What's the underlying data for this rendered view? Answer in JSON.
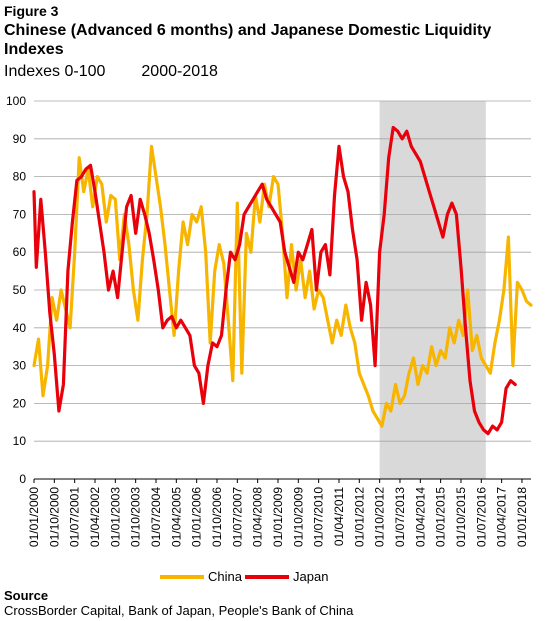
{
  "figure_label": "Figure 3",
  "title": "Chinese (Advanced 6 months) and Japanese Domestic Liquidity Indexes",
  "subtitle_left": "Indexes 0-100",
  "subtitle_right": "2000-2018",
  "source_heading": "Source",
  "source_text": "CrossBorder Capital, Bank of Japan, People's Bank of China",
  "colors": {
    "china": "#f7b500",
    "japan": "#e8000b",
    "shade": "#d9d9d9",
    "grid": "#a6a6a6"
  },
  "chart_data": {
    "type": "line",
    "title": "Chinese (Advanced 6 months) and Japanese Domestic Liquidity Indexes",
    "xlabel": "",
    "ylabel": "",
    "ylim": [
      0,
      100
    ],
    "yticks": [
      0,
      10,
      20,
      30,
      40,
      50,
      60,
      70,
      80,
      90,
      100
    ],
    "x_ticks": [
      "01/01/2000",
      "01/10/2000",
      "01/07/2001",
      "01/04/2002",
      "01/01/2003",
      "01/10/2003",
      "01/07/2004",
      "01/04/2005",
      "01/01/2006",
      "01/10/2006",
      "01/07/2007",
      "01/04/2008",
      "01/01/2009",
      "01/10/2009",
      "01/07/2010",
      "01/04/2011",
      "01/01/2012",
      "01/10/2012",
      "01/07/2013",
      "01/04/2014",
      "01/01/2015",
      "01/10/2015",
      "01/07/2016",
      "01/04/2017",
      "01/01/2018"
    ],
    "shaded_region": {
      "from": "2012-10",
      "to": "2016-09"
    },
    "grid": "horizontal",
    "legend_position": "bottom",
    "series": [
      {
        "name": "China",
        "color": "#f7b500",
        "points": [
          [
            "2000-01",
            30
          ],
          [
            "2000-03",
            37
          ],
          [
            "2000-05",
            22
          ],
          [
            "2000-07",
            30
          ],
          [
            "2000-09",
            48
          ],
          [
            "2000-11",
            42
          ],
          [
            "2001-01",
            50
          ],
          [
            "2001-03",
            45
          ],
          [
            "2001-05",
            40
          ],
          [
            "2001-07",
            60
          ],
          [
            "2001-09",
            85
          ],
          [
            "2001-11",
            76
          ],
          [
            "2002-01",
            82
          ],
          [
            "2002-03",
            72
          ],
          [
            "2002-05",
            80
          ],
          [
            "2002-07",
            78
          ],
          [
            "2002-09",
            68
          ],
          [
            "2002-11",
            75
          ],
          [
            "2003-01",
            74
          ],
          [
            "2003-03",
            58
          ],
          [
            "2003-05",
            70
          ],
          [
            "2003-07",
            62
          ],
          [
            "2003-09",
            50
          ],
          [
            "2003-11",
            42
          ],
          [
            "2004-01",
            58
          ],
          [
            "2004-03",
            70
          ],
          [
            "2004-05",
            88
          ],
          [
            "2004-07",
            80
          ],
          [
            "2004-09",
            72
          ],
          [
            "2004-11",
            62
          ],
          [
            "2005-01",
            50
          ],
          [
            "2005-03",
            38
          ],
          [
            "2005-05",
            55
          ],
          [
            "2005-07",
            68
          ],
          [
            "2005-09",
            62
          ],
          [
            "2005-11",
            70
          ],
          [
            "2006-01",
            68
          ],
          [
            "2006-03",
            72
          ],
          [
            "2006-05",
            60
          ],
          [
            "2006-07",
            36
          ],
          [
            "2006-09",
            55
          ],
          [
            "2006-11",
            62
          ],
          [
            "2007-01",
            57
          ],
          [
            "2007-03",
            42
          ],
          [
            "2007-05",
            26
          ],
          [
            "2007-07",
            73
          ],
          [
            "2007-09",
            28
          ],
          [
            "2007-11",
            65
          ],
          [
            "2008-01",
            60
          ],
          [
            "2008-03",
            75
          ],
          [
            "2008-05",
            68
          ],
          [
            "2008-07",
            78
          ],
          [
            "2008-09",
            72
          ],
          [
            "2008-11",
            80
          ],
          [
            "2009-01",
            78
          ],
          [
            "2009-03",
            65
          ],
          [
            "2009-05",
            48
          ],
          [
            "2009-07",
            62
          ],
          [
            "2009-09",
            50
          ],
          [
            "2009-11",
            58
          ],
          [
            "2010-01",
            48
          ],
          [
            "2010-03",
            55
          ],
          [
            "2010-05",
            45
          ],
          [
            "2010-07",
            50
          ],
          [
            "2010-09",
            48
          ],
          [
            "2010-11",
            42
          ],
          [
            "2011-01",
            36
          ],
          [
            "2011-03",
            42
          ],
          [
            "2011-05",
            38
          ],
          [
            "2011-07",
            46
          ],
          [
            "2011-09",
            40
          ],
          [
            "2011-11",
            36
          ],
          [
            "2012-01",
            28
          ],
          [
            "2012-03",
            25
          ],
          [
            "2012-05",
            22
          ],
          [
            "2012-07",
            18
          ],
          [
            "2012-09",
            16
          ],
          [
            "2012-11",
            14
          ],
          [
            "2013-01",
            20
          ],
          [
            "2013-03",
            18
          ],
          [
            "2013-05",
            25
          ],
          [
            "2013-07",
            20
          ],
          [
            "2013-09",
            22
          ],
          [
            "2013-11",
            28
          ],
          [
            "2014-01",
            32
          ],
          [
            "2014-03",
            25
          ],
          [
            "2014-05",
            30
          ],
          [
            "2014-07",
            28
          ],
          [
            "2014-09",
            35
          ],
          [
            "2014-11",
            30
          ],
          [
            "2015-01",
            34
          ],
          [
            "2015-03",
            32
          ],
          [
            "2015-05",
            40
          ],
          [
            "2015-07",
            36
          ],
          [
            "2015-09",
            42
          ],
          [
            "2015-11",
            38
          ],
          [
            "2016-01",
            50
          ],
          [
            "2016-03",
            34
          ],
          [
            "2016-05",
            38
          ],
          [
            "2016-07",
            32
          ],
          [
            "2016-09",
            30
          ],
          [
            "2016-11",
            28
          ],
          [
            "2017-01",
            36
          ],
          [
            "2017-03",
            42
          ],
          [
            "2017-05",
            50
          ],
          [
            "2017-07",
            64
          ],
          [
            "2017-09",
            30
          ],
          [
            "2017-11",
            52
          ],
          [
            "2018-01",
            50
          ],
          [
            "2018-03",
            47
          ],
          [
            "2018-05",
            46
          ]
        ]
      },
      {
        "name": "Japan",
        "color": "#e8000b",
        "points": [
          [
            "2000-01",
            76
          ],
          [
            "2000-02",
            56
          ],
          [
            "2000-04",
            74
          ],
          [
            "2000-06",
            60
          ],
          [
            "2000-08",
            44
          ],
          [
            "2000-10",
            33
          ],
          [
            "2000-12",
            18
          ],
          [
            "2001-02",
            25
          ],
          [
            "2001-04",
            55
          ],
          [
            "2001-06",
            68
          ],
          [
            "2001-08",
            79
          ],
          [
            "2001-10",
            80
          ],
          [
            "2001-12",
            82
          ],
          [
            "2002-02",
            83
          ],
          [
            "2002-04",
            76
          ],
          [
            "2002-06",
            68
          ],
          [
            "2002-08",
            60
          ],
          [
            "2002-10",
            50
          ],
          [
            "2002-12",
            55
          ],
          [
            "2003-02",
            48
          ],
          [
            "2003-04",
            60
          ],
          [
            "2003-06",
            72
          ],
          [
            "2003-08",
            75
          ],
          [
            "2003-10",
            65
          ],
          [
            "2003-12",
            74
          ],
          [
            "2004-02",
            70
          ],
          [
            "2004-04",
            65
          ],
          [
            "2004-06",
            58
          ],
          [
            "2004-08",
            50
          ],
          [
            "2004-10",
            40
          ],
          [
            "2004-12",
            42
          ],
          [
            "2005-02",
            43
          ],
          [
            "2005-04",
            40
          ],
          [
            "2005-06",
            42
          ],
          [
            "2005-08",
            40
          ],
          [
            "2005-10",
            38
          ],
          [
            "2005-12",
            30
          ],
          [
            "2006-02",
            28
          ],
          [
            "2006-04",
            20
          ],
          [
            "2006-06",
            30
          ],
          [
            "2006-08",
            36
          ],
          [
            "2006-10",
            35
          ],
          [
            "2006-12",
            38
          ],
          [
            "2007-02",
            50
          ],
          [
            "2007-04",
            60
          ],
          [
            "2007-06",
            58
          ],
          [
            "2007-08",
            62
          ],
          [
            "2007-10",
            70
          ],
          [
            "2007-12",
            72
          ],
          [
            "2008-02",
            74
          ],
          [
            "2008-04",
            76
          ],
          [
            "2008-06",
            78
          ],
          [
            "2008-08",
            74
          ],
          [
            "2008-10",
            72
          ],
          [
            "2008-12",
            70
          ],
          [
            "2009-02",
            68
          ],
          [
            "2009-04",
            60
          ],
          [
            "2009-06",
            56
          ],
          [
            "2009-08",
            52
          ],
          [
            "2009-10",
            60
          ],
          [
            "2009-12",
            58
          ],
          [
            "2010-02",
            62
          ],
          [
            "2010-04",
            66
          ],
          [
            "2010-06",
            50
          ],
          [
            "2010-08",
            60
          ],
          [
            "2010-10",
            62
          ],
          [
            "2010-12",
            54
          ],
          [
            "2011-02",
            75
          ],
          [
            "2011-04",
            88
          ],
          [
            "2011-06",
            80
          ],
          [
            "2011-08",
            76
          ],
          [
            "2011-10",
            66
          ],
          [
            "2011-12",
            58
          ],
          [
            "2012-02",
            42
          ],
          [
            "2012-04",
            52
          ],
          [
            "2012-06",
            46
          ],
          [
            "2012-08",
            30
          ],
          [
            "2012-10",
            60
          ],
          [
            "2012-12",
            70
          ],
          [
            "2013-02",
            85
          ],
          [
            "2013-04",
            93
          ],
          [
            "2013-06",
            92
          ],
          [
            "2013-08",
            90
          ],
          [
            "2013-10",
            92
          ],
          [
            "2013-12",
            88
          ],
          [
            "2014-02",
            86
          ],
          [
            "2014-04",
            84
          ],
          [
            "2014-06",
            80
          ],
          [
            "2014-08",
            76
          ],
          [
            "2014-10",
            72
          ],
          [
            "2014-12",
            68
          ],
          [
            "2015-02",
            64
          ],
          [
            "2015-04",
            70
          ],
          [
            "2015-06",
            73
          ],
          [
            "2015-08",
            70
          ],
          [
            "2015-10",
            56
          ],
          [
            "2015-12",
            40
          ],
          [
            "2016-02",
            26
          ],
          [
            "2016-04",
            18
          ],
          [
            "2016-06",
            15
          ],
          [
            "2016-08",
            13
          ],
          [
            "2016-10",
            12
          ],
          [
            "2016-12",
            14
          ],
          [
            "2017-02",
            13
          ],
          [
            "2017-04",
            15
          ],
          [
            "2017-06",
            24
          ],
          [
            "2017-08",
            26
          ],
          [
            "2017-10",
            25
          ]
        ]
      }
    ]
  }
}
